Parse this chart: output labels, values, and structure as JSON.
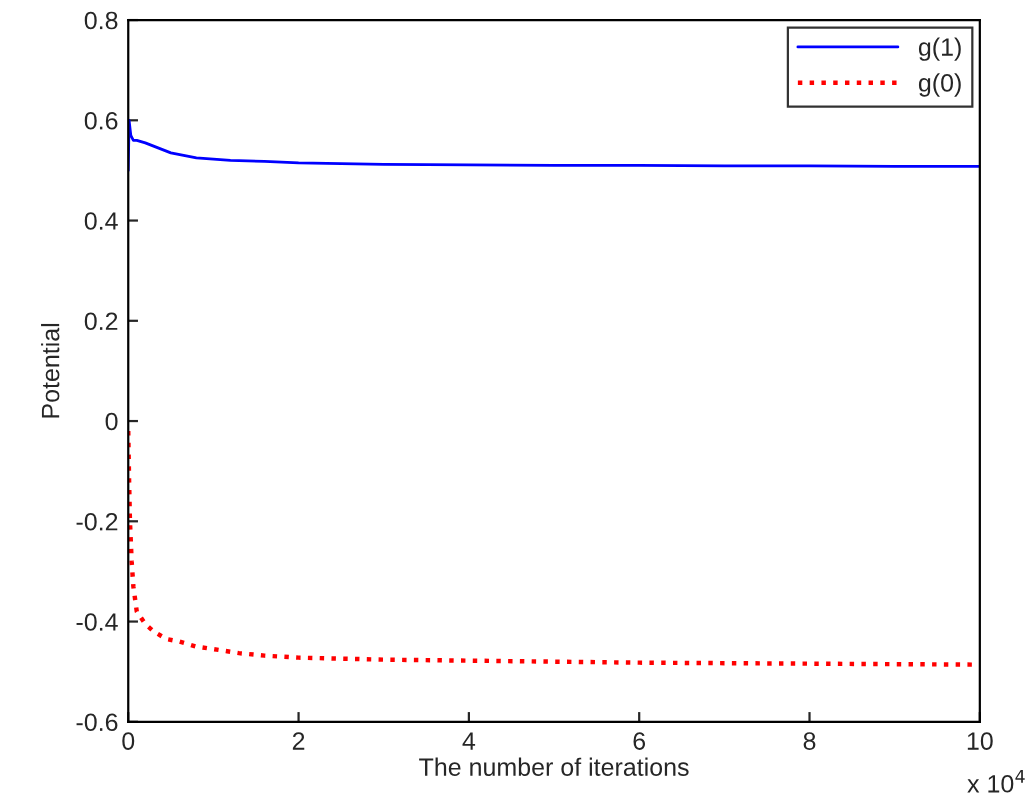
{
  "chart_data": {
    "type": "line",
    "xlabel": "The number of iterations",
    "ylabel": "Potential",
    "annotations": [
      "x 10$^{4}$"
    ],
    "xlim": [
      0,
      10
    ],
    "xticks": [
      0,
      2,
      4,
      6,
      8,
      10
    ],
    "ylim": [
      -0.6,
      0.8
    ],
    "yticks": [
      -0.6,
      -0.4,
      -0.2,
      0,
      0.2,
      0.4,
      0.6,
      0.8
    ],
    "grid": false,
    "legend": "top right",
    "series": [
      {
        "name": "g(1)",
        "color": "#0000ff",
        "line_style": "solid",
        "x": [
          0,
          0.01,
          0.03,
          0.06,
          0.1,
          0.2,
          0.35,
          0.5,
          0.8,
          1.2,
          1.6,
          2,
          3,
          4,
          5,
          6,
          7,
          8,
          9,
          10
        ],
        "values": [
          0.5,
          0.6,
          0.57,
          0.56,
          0.56,
          0.555,
          0.545,
          0.535,
          0.525,
          0.52,
          0.518,
          0.515,
          0.512,
          0.511,
          0.51,
          0.51,
          0.509,
          0.509,
          0.508,
          0.508
        ]
      },
      {
        "name": "g(0)",
        "color": "#ff0000",
        "line_style": "dotted",
        "x": [
          0,
          0.01,
          0.02,
          0.04,
          0.06,
          0.1,
          0.2,
          0.3,
          0.45,
          0.6,
          0.8,
          1,
          1.3,
          1.6,
          2,
          2.5,
          3,
          4,
          5,
          6,
          7,
          8,
          9,
          10
        ],
        "values": [
          -0.02,
          -0.12,
          -0.2,
          -0.28,
          -0.33,
          -0.38,
          -0.405,
          -0.42,
          -0.435,
          -0.44,
          -0.45,
          -0.455,
          -0.463,
          -0.468,
          -0.472,
          -0.474,
          -0.476,
          -0.478,
          -0.48,
          -0.482,
          -0.483,
          -0.484,
          -0.485,
          -0.486
        ]
      }
    ]
  }
}
